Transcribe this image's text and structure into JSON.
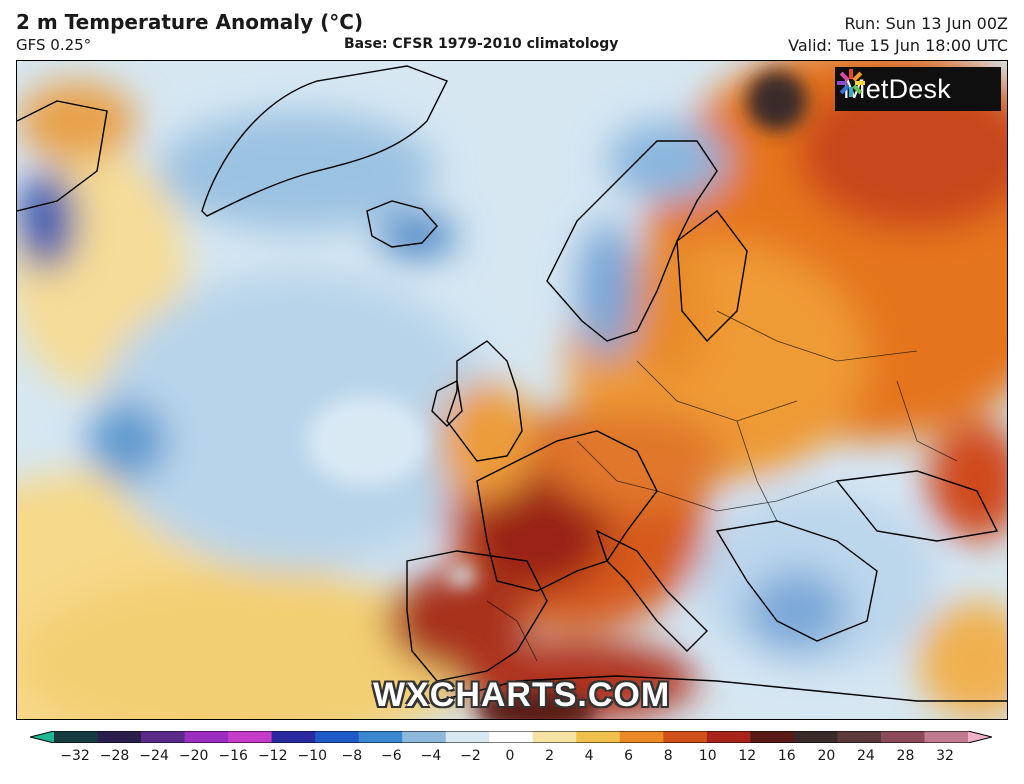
{
  "header": {
    "title": "2 m Temperature Anomaly (°C)",
    "model": "GFS 0.25°",
    "base": "Base: CFSR 1979-2010 climatology",
    "run": "Run: Sun 13 Jun 00Z",
    "valid": "Valid: Tue 15 Jun 18:00 UTC"
  },
  "logo": {
    "text": "MetDesk"
  },
  "watermark": "WXCHARTS.COM",
  "colorbar": {
    "ticks": [
      "−32",
      "−28",
      "−24",
      "−20",
      "−16",
      "−12",
      "−10",
      "−8",
      "−6",
      "−4",
      "−2",
      "0",
      "2",
      "4",
      "6",
      "8",
      "10",
      "12",
      "16",
      "20",
      "24",
      "28",
      "32"
    ],
    "colors": [
      "#1fb894",
      "#163a3f",
      "#2a1f4a",
      "#5a2a8a",
      "#9b2ec0",
      "#c43cc8",
      "#2a2aa0",
      "#1e5ac8",
      "#3a87cf",
      "#8db9dd",
      "#d7e8f2",
      "#ffffff",
      "#f4e3a3",
      "#f0c14c",
      "#ea8a25",
      "#d2501c",
      "#a8241a",
      "#5a1a17",
      "#3a2a2a",
      "#5a3a3a",
      "#8a4a5a",
      "#c07a90",
      "#f0b0c8"
    ]
  }
}
